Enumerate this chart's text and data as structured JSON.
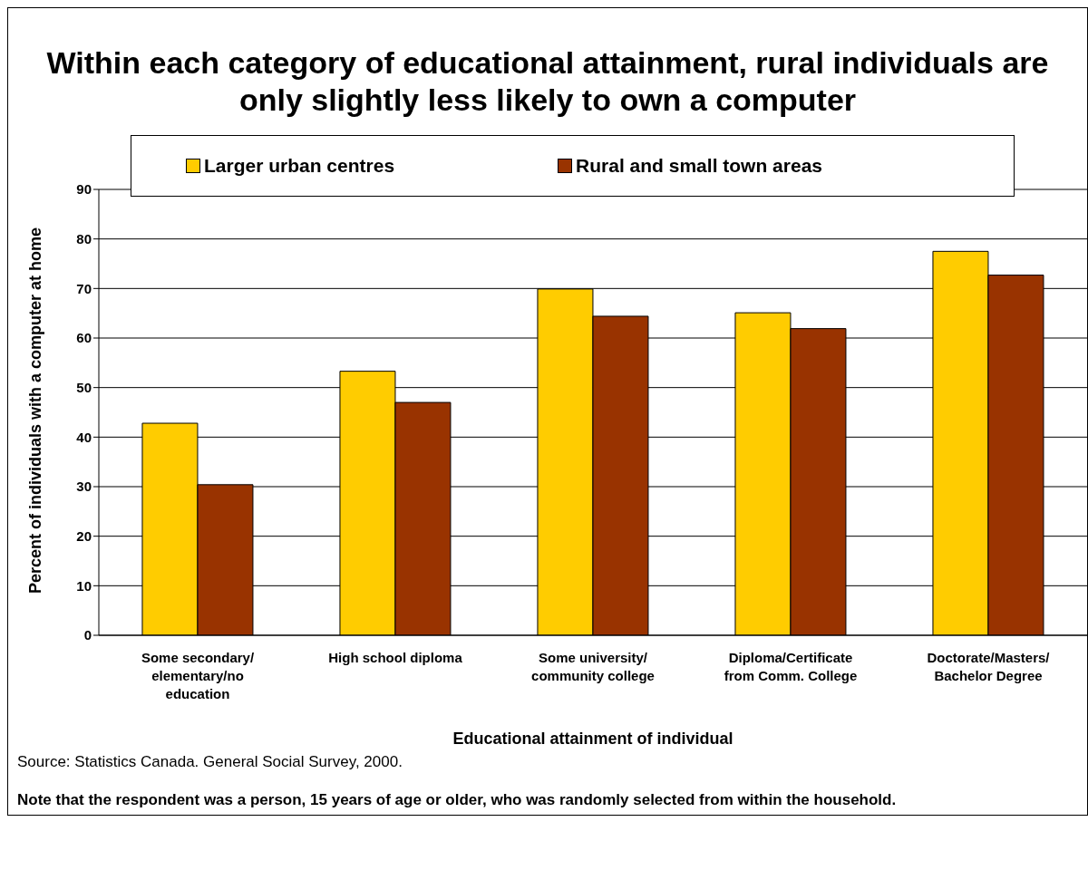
{
  "chart_data": {
    "type": "bar",
    "title": "Within each category of educational attainment, rural individuals are only slightly less likely to own a computer",
    "xlabel": "Educational attainment of individual",
    "ylabel": "Percent of individuals with a computer at home",
    "categories": [
      "Some secondary/ elementary/no education",
      "High school diploma",
      "Some university/ community college",
      "Diploma/Certificate from Comm. College",
      "Doctorate/Masters/ Bachelor Degree"
    ],
    "series": [
      {
        "name": "Larger urban centres",
        "color": "#ffcc00",
        "values": [
          42.8,
          53.3,
          69.9,
          65.1,
          77.5
        ]
      },
      {
        "name": "Rural and small town areas",
        "color": "#993300",
        "values": [
          30.4,
          47.0,
          64.4,
          61.9,
          72.7
        ]
      }
    ],
    "ylim": [
      0,
      90
    ],
    "yticks": [
      0,
      10,
      20,
      30,
      40,
      50,
      60,
      70,
      80,
      90
    ],
    "grid": "y",
    "legend": "top",
    "annotations": [
      "Source: Statistics Canada.  General Social Survey, 2000.",
      "Note that the respondent was a person, 15 years of age or older, who was randomly selected from within the household."
    ]
  }
}
